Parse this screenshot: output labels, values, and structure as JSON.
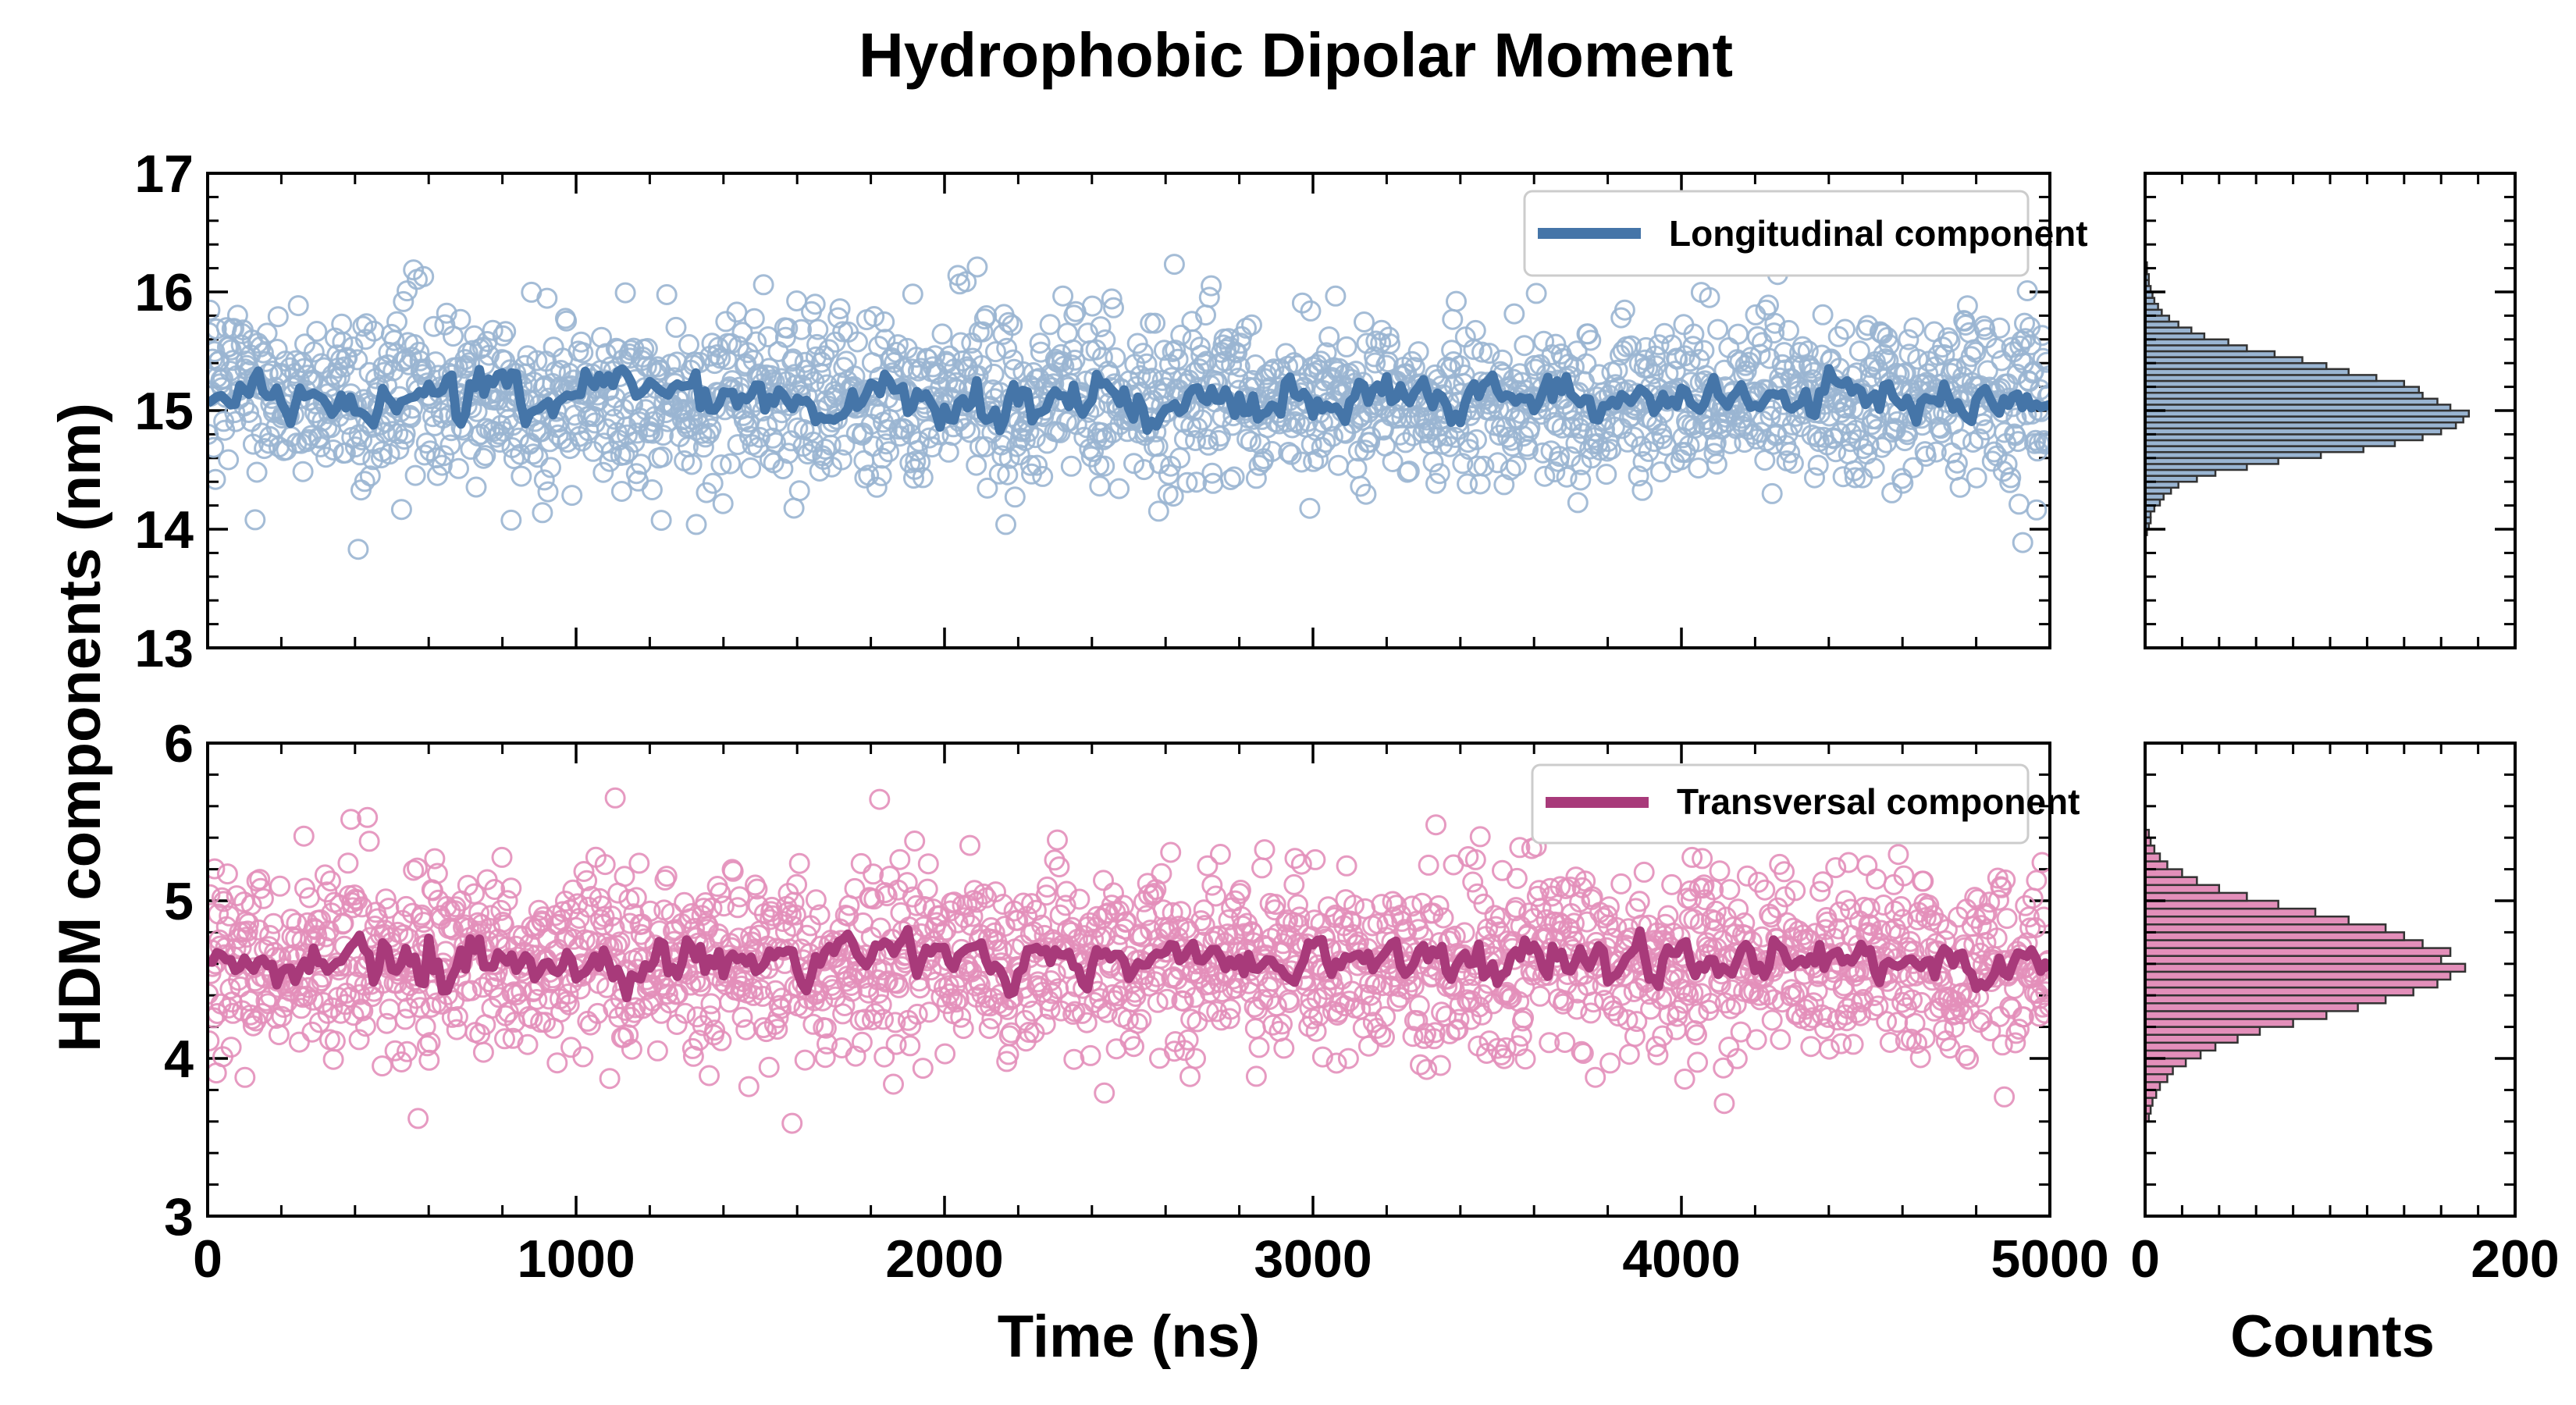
{
  "figure": {
    "title": "Hydrophobic Dipolar Moment",
    "xlabel": "Time (ns)",
    "ylabel": "HDM components (nm)",
    "hist_xlabel": "Counts"
  },
  "colors": {
    "longitudinal": "#4575a8",
    "longitudinal_fill": "#9ab5d2",
    "transversal": "#a83a7a",
    "transversal_fill": "#e38fba"
  },
  "chart_data": [
    {
      "type": "scatter",
      "panel": "top-time-series",
      "xlim": [
        0,
        5000
      ],
      "ylim": [
        13,
        17
      ],
      "xticks": [
        0,
        1000,
        2000,
        3000,
        4000,
        5000
      ],
      "yticks": [
        13,
        14,
        15,
        16,
        17
      ],
      "grid": false,
      "legend": {
        "placement": "top-right",
        "entries": [
          "Longitudinal component"
        ]
      },
      "series": [
        {
          "name": "Longitudinal component",
          "kind": "scatter",
          "n_points": 2000,
          "mean": 15.1,
          "std": 0.35
        },
        {
          "name": "Longitudinal component",
          "kind": "line",
          "mean": 15.1,
          "std": 0.12
        }
      ]
    },
    {
      "type": "scatter",
      "panel": "bottom-time-series",
      "xlim": [
        0,
        5000
      ],
      "ylim": [
        3,
        6
      ],
      "xticks": [
        0,
        1000,
        2000,
        3000,
        4000,
        5000
      ],
      "yticks": [
        3,
        4,
        5,
        6
      ],
      "grid": false,
      "legend": {
        "placement": "top-right",
        "entries": [
          "Transversal component"
        ]
      },
      "series": [
        {
          "name": "Transversal component",
          "kind": "scatter",
          "n_points": 2000,
          "mean": 4.62,
          "std": 0.3
        },
        {
          "name": "Transversal component",
          "kind": "line",
          "mean": 4.62,
          "std": 0.1
        }
      ]
    },
    {
      "type": "bar",
      "panel": "top-histogram",
      "orientation": "horizontal",
      "xlim": [
        0,
        200
      ],
      "ylim": [
        13,
        17
      ],
      "bin_width": 0.05,
      "bin_centers": [
        13.975,
        14.025,
        14.075,
        14.125,
        14.175,
        14.225,
        14.275,
        14.325,
        14.375,
        14.425,
        14.475,
        14.525,
        14.575,
        14.625,
        14.675,
        14.725,
        14.775,
        14.825,
        14.875,
        14.925,
        14.975,
        15.025,
        15.075,
        15.125,
        15.175,
        15.225,
        15.275,
        15.325,
        15.375,
        15.425,
        15.475,
        15.525,
        15.575,
        15.625,
        15.675,
        15.725,
        15.775,
        15.825,
        15.875,
        15.925,
        15.975,
        16.025,
        16.075,
        16.125,
        16.175,
        16.225
      ],
      "counts": [
        1,
        2,
        3,
        3,
        5,
        8,
        10,
        14,
        18,
        28,
        38,
        55,
        72,
        95,
        118,
        135,
        150,
        160,
        168,
        172,
        175,
        165,
        158,
        150,
        148,
        140,
        125,
        110,
        98,
        85,
        70,
        55,
        45,
        32,
        25,
        18,
        13,
        9,
        7,
        5,
        4,
        3,
        2,
        2,
        1,
        1
      ]
    },
    {
      "type": "bar",
      "panel": "bottom-histogram",
      "orientation": "horizontal",
      "xlim": [
        0,
        200
      ],
      "ylim": [
        3,
        6
      ],
      "bin_width": 0.05,
      "bin_centers": [
        3.625,
        3.675,
        3.725,
        3.775,
        3.825,
        3.875,
        3.925,
        3.975,
        4.025,
        4.075,
        4.125,
        4.175,
        4.225,
        4.275,
        4.325,
        4.375,
        4.425,
        4.475,
        4.525,
        4.575,
        4.625,
        4.675,
        4.725,
        4.775,
        4.825,
        4.875,
        4.925,
        4.975,
        5.025,
        5.075,
        5.125,
        5.175,
        5.225,
        5.275,
        5.325,
        5.375,
        5.425
      ],
      "counts": [
        2,
        3,
        4,
        6,
        8,
        12,
        15,
        22,
        30,
        38,
        50,
        62,
        80,
        98,
        115,
        130,
        145,
        158,
        165,
        173,
        160,
        165,
        150,
        140,
        130,
        110,
        92,
        72,
        55,
        40,
        28,
        20,
        12,
        8,
        5,
        3,
        2
      ]
    }
  ]
}
